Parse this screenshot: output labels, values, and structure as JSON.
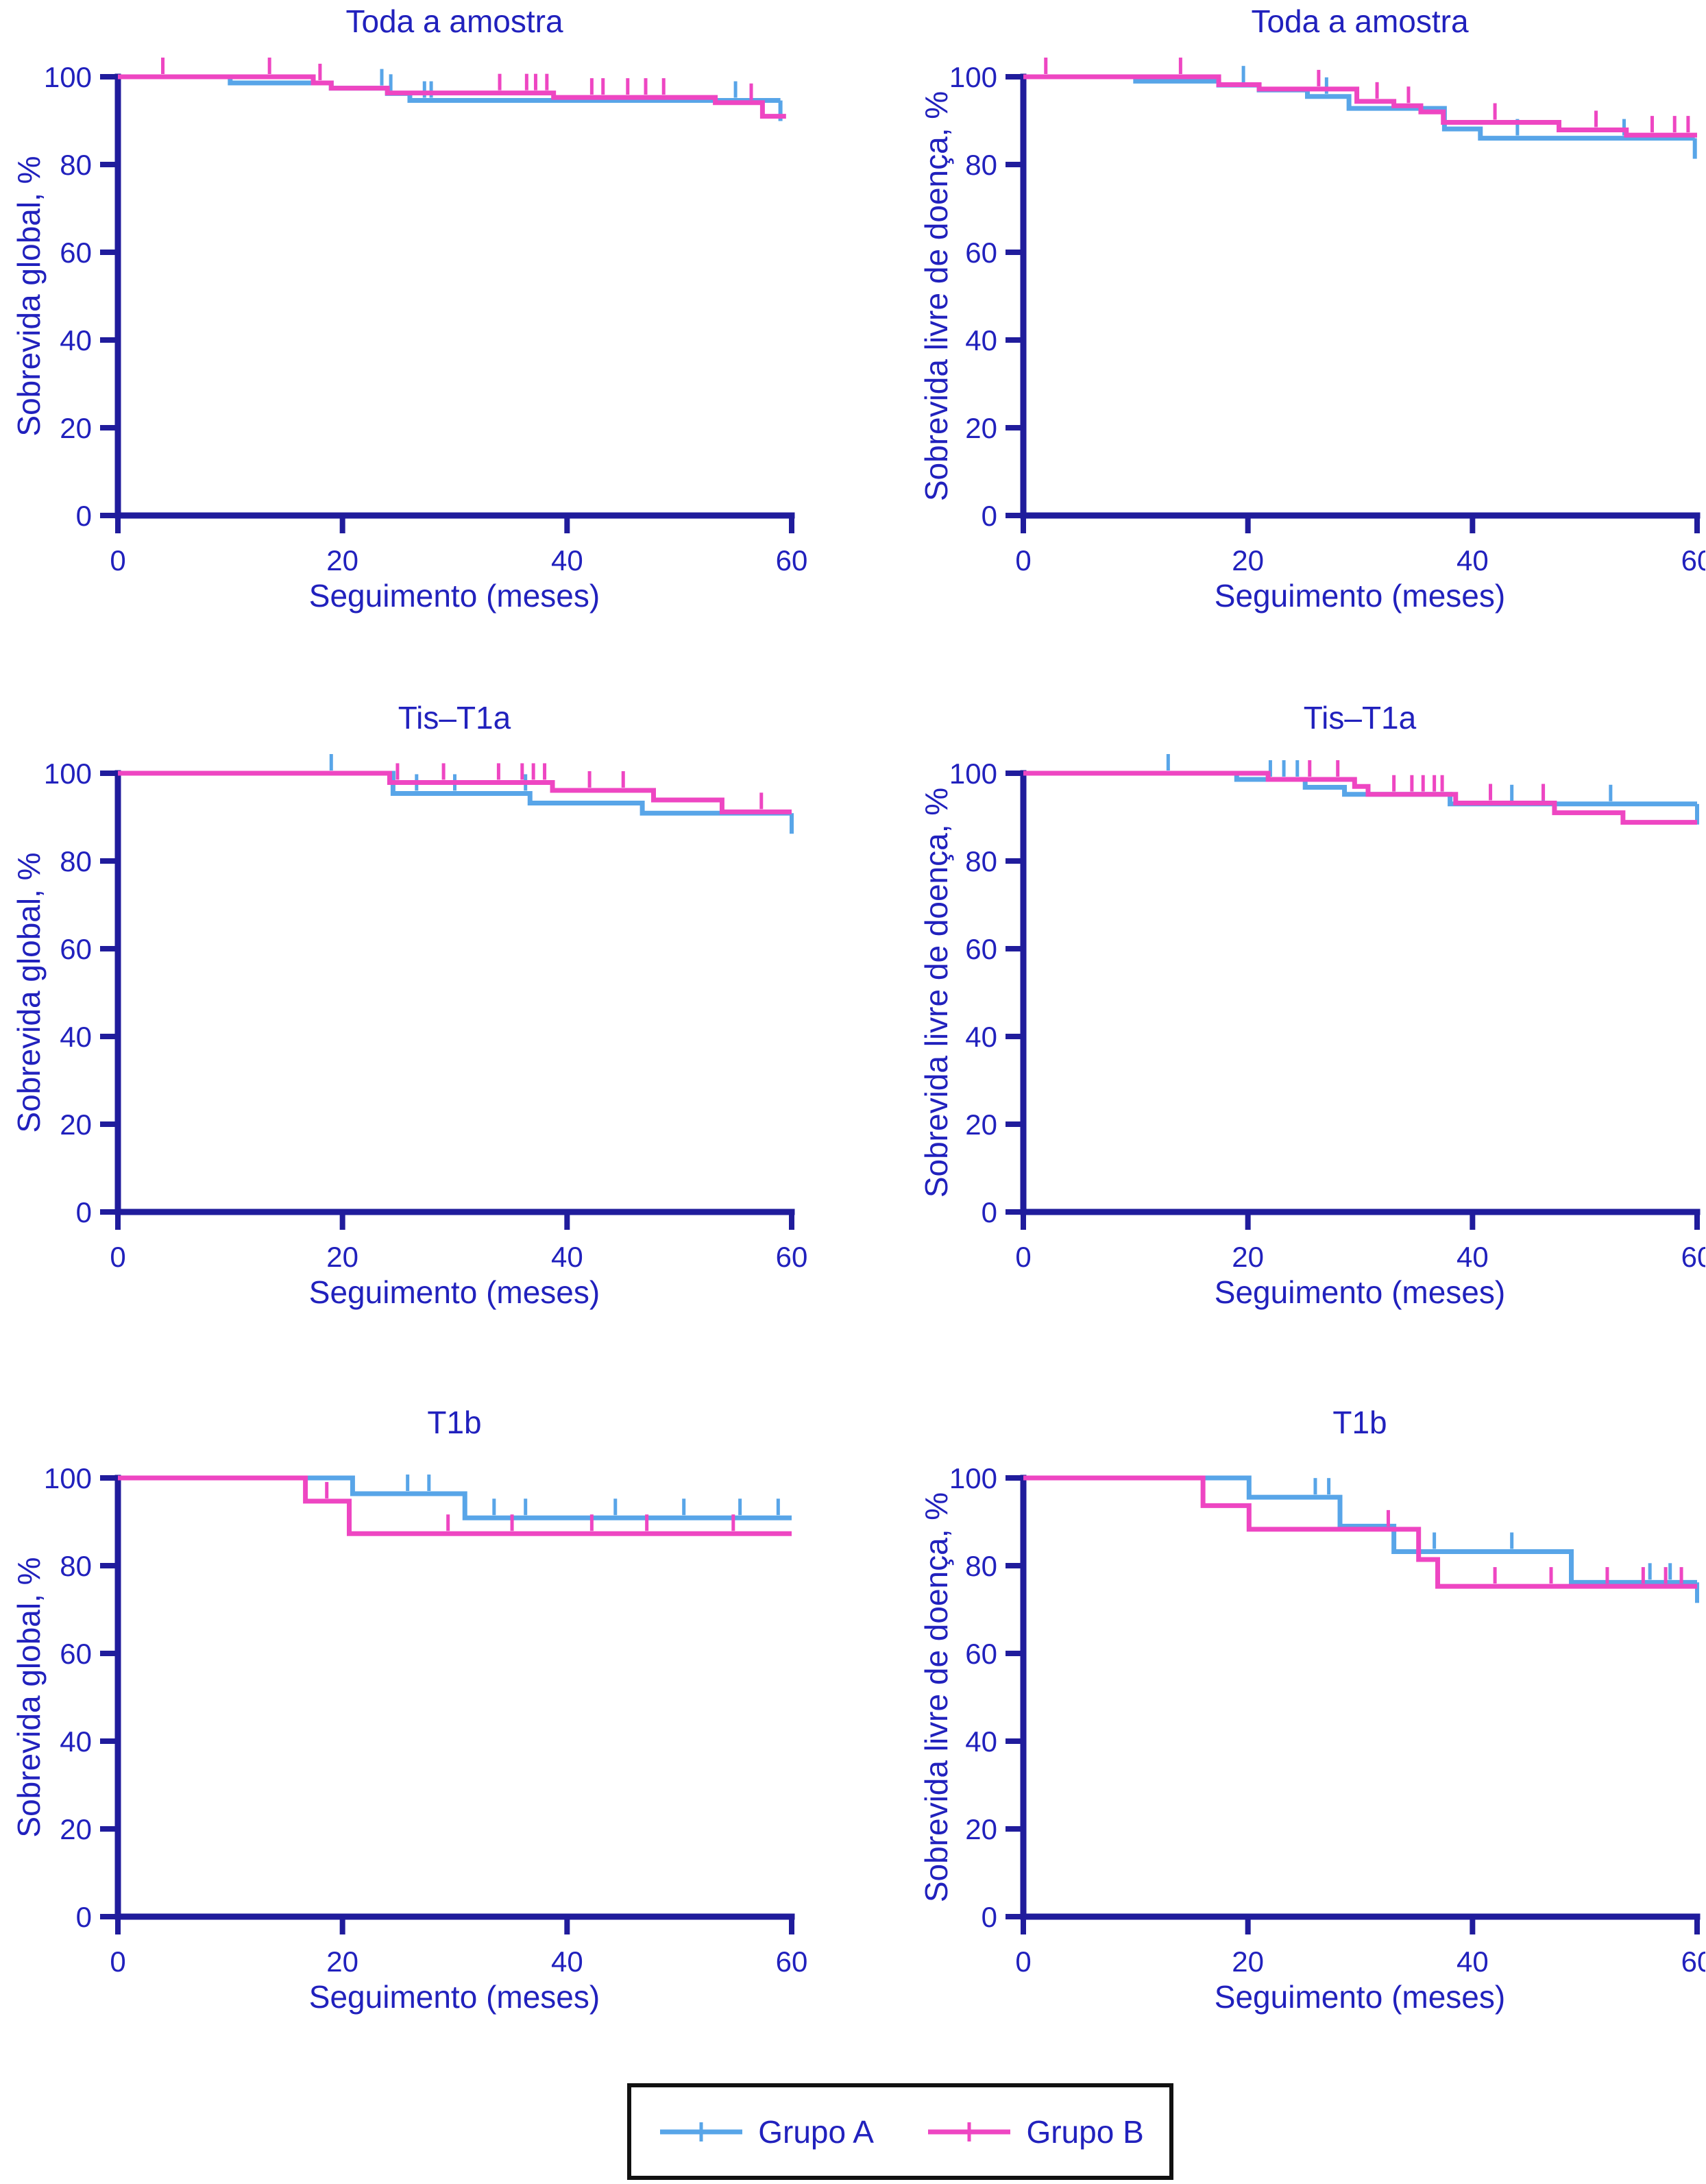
{
  "chart_data": {
    "type": "line",
    "subtype": "kaplan-meier-step",
    "colors": {
      "grupo_a": "#58a5e8",
      "grupo_b": "#ee46c2",
      "axis": "#201c9c",
      "text": "#2121bd"
    },
    "x_ticks": [
      0,
      20,
      40,
      60
    ],
    "y_ticks": [
      0,
      20,
      40,
      60,
      80,
      100
    ],
    "xlim": [
      0,
      60
    ],
    "ylim": [
      0,
      100
    ],
    "grid": "off",
    "legend_position": "bottom-center",
    "plots": [
      {
        "title": "Toda a amostra",
        "ylabel": "Sobrevida global, %",
        "xlabel": "Seguimento (meses)",
        "series": [
          {
            "name": "Grupo A",
            "steps": [
              [
                0,
                100
              ],
              [
                10,
                98.6
              ],
              [
                19,
                97.4
              ],
              [
                24,
                96.2
              ],
              [
                26,
                94.6
              ],
              [
                59,
                94.6
              ]
            ],
            "censors": [
              23.5,
              24.3,
              27.3,
              27.9,
              55
            ],
            "end_tick": true
          },
          {
            "name": "Grupo B",
            "steps": [
              [
                0,
                100
              ],
              [
                17.4,
                98.6
              ],
              [
                19,
                97.4
              ],
              [
                24,
                96.3
              ],
              [
                38.8,
                95.3
              ],
              [
                53.2,
                94.1
              ],
              [
                57.4,
                91
              ],
              [
                59.5,
                91
              ]
            ],
            "censors": [
              4,
              13.5,
              18,
              34,
              36.4,
              37.2,
              38.2,
              42.2,
              43.2,
              45.4,
              47,
              48.6,
              56.4
            ],
            "end_tick": false
          }
        ]
      },
      {
        "title": "Toda a amostra",
        "ylabel": "Sobrevida livre de doença, %",
        "xlabel": "Seguimento (meses)",
        "series": [
          {
            "name": "Grupo A",
            "steps": [
              [
                0,
                100
              ],
              [
                10,
                99
              ],
              [
                17.4,
                98.1
              ],
              [
                21,
                97
              ],
              [
                25.3,
                95.5
              ],
              [
                29,
                92.8
              ],
              [
                37.5,
                88.1
              ],
              [
                40.7,
                86
              ],
              [
                59.8,
                86
              ]
            ],
            "censors": [
              19.6,
              27,
              44,
              53.5
            ],
            "end_tick": true
          },
          {
            "name": "Grupo B",
            "steps": [
              [
                0,
                100
              ],
              [
                17.4,
                98.2
              ],
              [
                21,
                97.2
              ],
              [
                29.7,
                94.4
              ],
              [
                33,
                93.4
              ],
              [
                35.4,
                92
              ],
              [
                37.4,
                89.6
              ],
              [
                47.7,
                87.9
              ],
              [
                53.7,
                86.7
              ],
              [
                60,
                86.7
              ]
            ],
            "censors": [
              2,
              14,
              26.3,
              31.5,
              34.3,
              42,
              51,
              56,
              58,
              59.2
            ],
            "end_tick": false
          }
        ]
      },
      {
        "title": "Tis–T1a",
        "ylabel": "Sobrevida global, %",
        "xlabel": "Seguimento (meses)",
        "series": [
          {
            "name": "Grupo A",
            "steps": [
              [
                0,
                100
              ],
              [
                24.5,
                95.4
              ],
              [
                36.7,
                93.2
              ],
              [
                46.7,
                90.9
              ],
              [
                60,
                90.9
              ]
            ],
            "censors": [
              19,
              26.6,
              30,
              36.3
            ],
            "end_tick": true
          },
          {
            "name": "Grupo B",
            "steps": [
              [
                0,
                100
              ],
              [
                24.2,
                97.9
              ],
              [
                38.7,
                96.1
              ],
              [
                47.7,
                93.9
              ],
              [
                53.8,
                91.2
              ],
              [
                60,
                91.2
              ]
            ],
            "censors": [
              24.9,
              29,
              33.9,
              36,
              37,
              38,
              42,
              45,
              57.3
            ],
            "end_tick": false
          }
        ]
      },
      {
        "title": "Tis–T1a",
        "ylabel": "Sobrevida livre de doença, %",
        "xlabel": "Seguimento (meses)",
        "series": [
          {
            "name": "Grupo A",
            "steps": [
              [
                0,
                100
              ],
              [
                19,
                98.6
              ],
              [
                25.1,
                96.8
              ],
              [
                28.6,
                95.2
              ],
              [
                38,
                93
              ],
              [
                60,
                93
              ]
            ],
            "censors": [
              12.9,
              22,
              23.2,
              24.4,
              43.5,
              46.3,
              52.3
            ],
            "end_tick": true
          },
          {
            "name": "Grupo B",
            "steps": [
              [
                0,
                100
              ],
              [
                21.8,
                98.6
              ],
              [
                29.5,
                97
              ],
              [
                30.7,
                95.2
              ],
              [
                38.5,
                93.2
              ],
              [
                47.3,
                91
              ],
              [
                53.4,
                88.8
              ],
              [
                60,
                88.8
              ]
            ],
            "censors": [
              25.5,
              28,
              33,
              34.6,
              35.6,
              36.6,
              37.3,
              41.6,
              46.3
            ],
            "end_tick": false
          }
        ]
      },
      {
        "title": "T1b",
        "ylabel": "Sobrevida global, %",
        "xlabel": "Seguimento (meses)",
        "series": [
          {
            "name": "Grupo A",
            "steps": [
              [
                0,
                100
              ],
              [
                20.9,
                96.4
              ],
              [
                30.9,
                90.9
              ],
              [
                60,
                90.9
              ]
            ],
            "censors": [
              25.8,
              27.7,
              33.5,
              36.3,
              44.3,
              50.4,
              55.4,
              58.8
            ],
            "end_tick": false
          },
          {
            "name": "Grupo B",
            "steps": [
              [
                0,
                100
              ],
              [
                16.7,
                94.7
              ],
              [
                20.6,
                87.3
              ],
              [
                60,
                87.3
              ]
            ],
            "censors": [
              18.6,
              29.4,
              35.1,
              42.2,
              47.1,
              54.8
            ],
            "end_tick": false
          }
        ]
      },
      {
        "title": "T1b",
        "ylabel": "Sobrevida livre de doença, %",
        "xlabel": "Seguimento (meses)",
        "series": [
          {
            "name": "Grupo A",
            "steps": [
              [
                0,
                100
              ],
              [
                20.1,
                95.6
              ],
              [
                28.2,
                89
              ],
              [
                33,
                83.2
              ],
              [
                48.8,
                76.2
              ],
              [
                60,
                76.2
              ]
            ],
            "censors": [
              26,
              27.2,
              36.6,
              43.5,
              55.8,
              57.6
            ],
            "end_tick": true
          },
          {
            "name": "Grupo B",
            "steps": [
              [
                0,
                100
              ],
              [
                16,
                93.7
              ],
              [
                20.1,
                88.3
              ],
              [
                35.2,
                81.4
              ],
              [
                36.9,
                75.3
              ],
              [
                60,
                75.3
              ]
            ],
            "censors": [
              32.5,
              42,
              47,
              52,
              55.2,
              57.2,
              58.6
            ],
            "end_tick": false
          }
        ]
      }
    ],
    "legend": {
      "items": [
        {
          "label": "Grupo A",
          "color_key": "grupo_a"
        },
        {
          "label": "Grupo B",
          "color_key": "grupo_b"
        }
      ]
    }
  }
}
